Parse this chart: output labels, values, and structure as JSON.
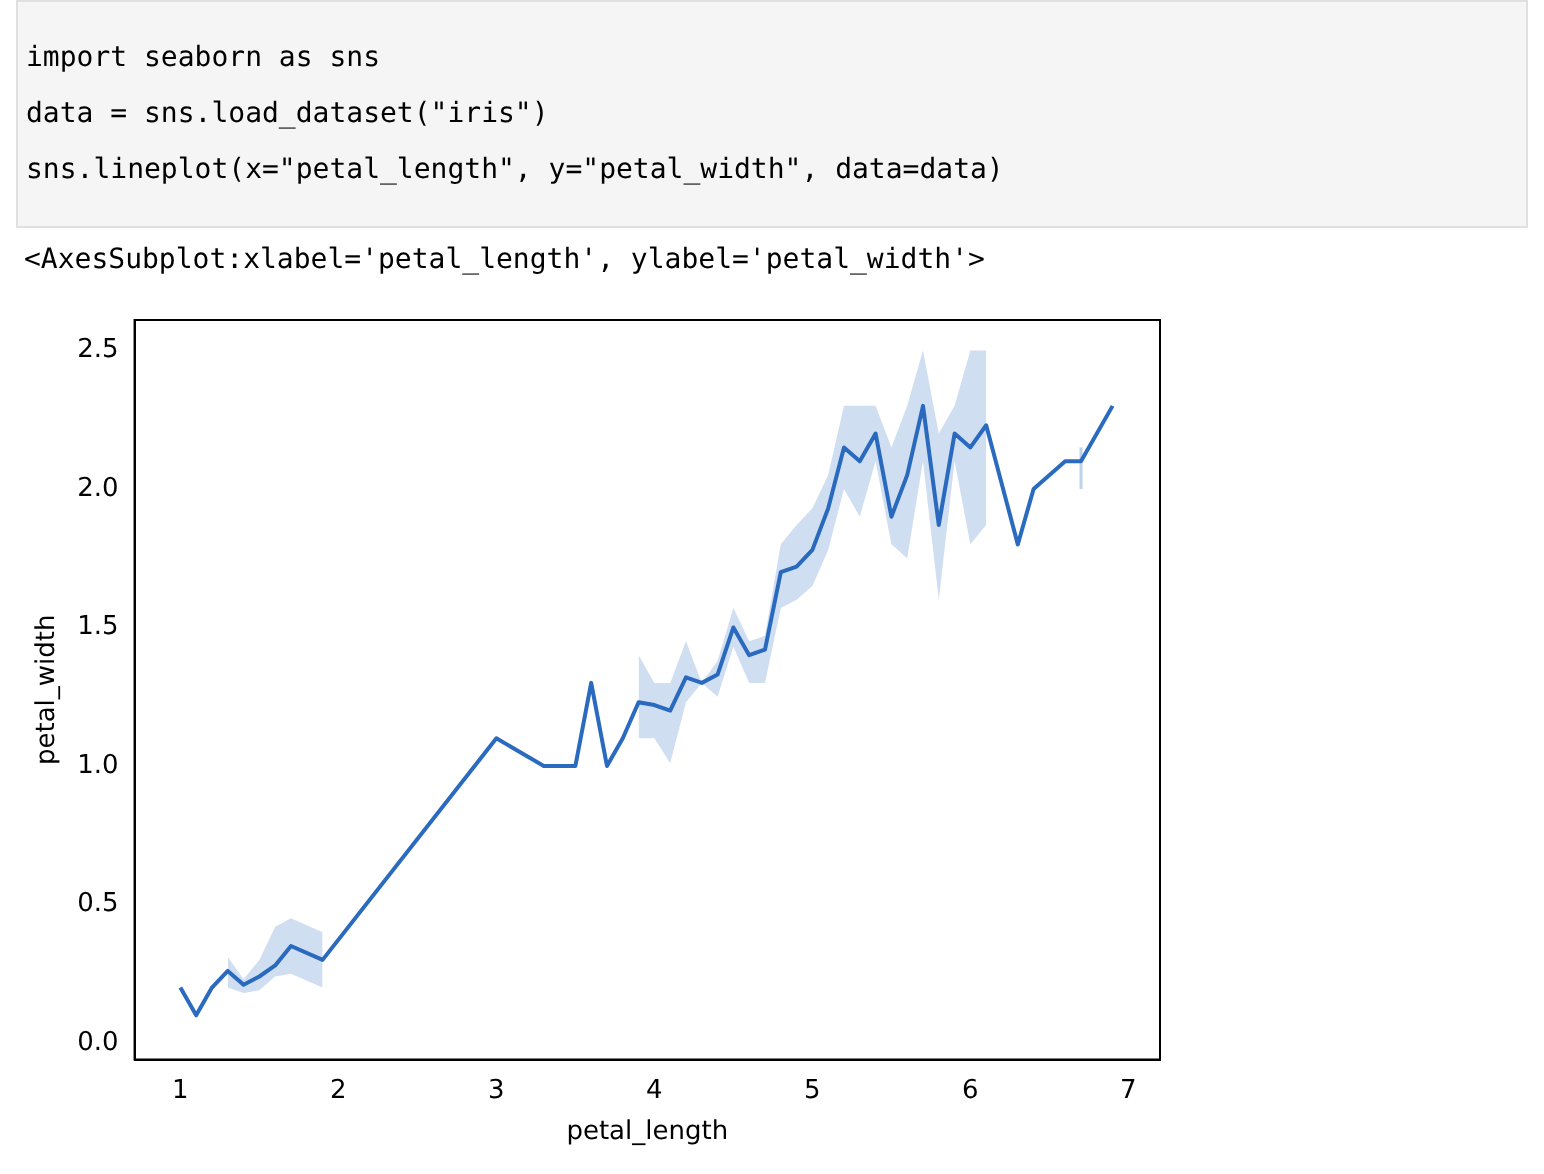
{
  "chart_data": {
    "type": "line",
    "xlabel": "petal_length",
    "ylabel": "petal_width",
    "annotations": [
      "import seaborn as sns",
      "data = sns.load_dataset(\"iris\")",
      "sns.lineplot(x=\"petal_length\", y=\"petal_width\", data=data)",
      "<AxesSubplot:xlabel='petal_length', ylabel='petal_width'>"
    ],
    "x": [
      1.0,
      1.1,
      1.2,
      1.3,
      1.4,
      1.5,
      1.6,
      1.7,
      1.9,
      3.0,
      3.3,
      3.5,
      3.6,
      3.7,
      3.8,
      3.9,
      4.0,
      4.1,
      4.2,
      4.3,
      4.4,
      4.5,
      4.6,
      4.7,
      4.8,
      4.9,
      5.0,
      5.1,
      5.2,
      5.3,
      5.4,
      5.5,
      5.6,
      5.7,
      5.8,
      5.9,
      6.0,
      6.1,
      6.3,
      6.4,
      6.6,
      6.7,
      6.9
    ],
    "series": [
      {
        "color": "#2a6bbf",
        "values": [
          0.2,
          0.1,
          0.2,
          0.26,
          0.21,
          0.24,
          0.28,
          0.35,
          0.3,
          1.1,
          1.0,
          1.0,
          1.3,
          1.0,
          1.1,
          1.23,
          1.22,
          1.2,
          1.32,
          1.3,
          1.33,
          1.5,
          1.4,
          1.42,
          1.7,
          1.72,
          1.78,
          1.93,
          2.15,
          2.1,
          2.2,
          1.9,
          2.05,
          2.3,
          1.87,
          2.2,
          2.15,
          2.23,
          1.8,
          2.0,
          2.1,
          2.1,
          2.3
        ],
        "lower": [
          null,
          null,
          null,
          0.2,
          0.18,
          0.19,
          0.24,
          0.25,
          0.2,
          null,
          null,
          null,
          null,
          null,
          null,
          1.1,
          1.1,
          1.01,
          1.23,
          1.3,
          1.25,
          1.43,
          1.3,
          1.3,
          1.57,
          1.6,
          1.65,
          1.78,
          2.0,
          1.9,
          2.1,
          1.8,
          1.75,
          2.1,
          1.6,
          2.1,
          1.8,
          1.87,
          null,
          null,
          null,
          null,
          null
        ],
        "errors": [
          null,
          null,
          null,
          null,
          null,
          null,
          null,
          null,
          null,
          null,
          null,
          null,
          null,
          null,
          null,
          null,
          null,
          null,
          null,
          null,
          null,
          null,
          null,
          null,
          null,
          null,
          null,
          null,
          null,
          null,
          null,
          null,
          null,
          null,
          null,
          null,
          null,
          null,
          null,
          null,
          null,
          [
            2.0,
            2.15
          ],
          null
        ],
        "upper": [
          null,
          null,
          null,
          0.31,
          0.23,
          0.3,
          0.42,
          0.45,
          0.4,
          null,
          null,
          null,
          null,
          null,
          null,
          1.4,
          1.3,
          1.3,
          1.45,
          1.3,
          1.38,
          1.57,
          1.45,
          1.47,
          1.8,
          1.87,
          1.93,
          2.05,
          2.3,
          2.3,
          2.3,
          2.15,
          2.3,
          2.5,
          2.2,
          2.3,
          2.5,
          2.5,
          null,
          null,
          null,
          null,
          null
        ]
      }
    ],
    "xlim": [
      0.71,
      7.2
    ],
    "xticks": [
      1,
      2,
      3,
      4,
      5,
      6,
      7
    ],
    "ylim": [
      -0.06,
      2.61
    ],
    "yticks": [
      {
        "value": 0,
        "label": "0.0"
      },
      {
        "value": 0.5,
        "label": "0.5"
      },
      {
        "value": 1,
        "label": "1.0"
      },
      {
        "value": 1.5,
        "label": "1.5"
      },
      {
        "value": 2,
        "label": "2.0"
      },
      {
        "value": 2.5,
        "label": "2.5"
      }
    ],
    "grid": false,
    "legend": false,
    "marker": "none",
    "line_style": "solid"
  }
}
